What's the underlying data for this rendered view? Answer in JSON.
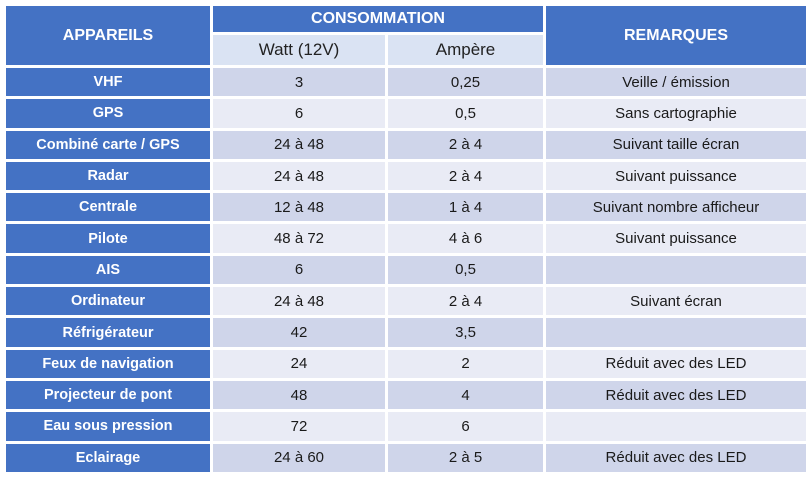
{
  "headers": {
    "appareils": "APPAREILS",
    "consommation": "CONSOMMATION",
    "watt": "Watt (12V)",
    "ampere": "Ampère",
    "remarques": "REMARQUES"
  },
  "rows": [
    {
      "appareil": "VHF",
      "watt": "3",
      "ampere": "0,25",
      "remarque": "Veille / émission"
    },
    {
      "appareil": "GPS",
      "watt": "6",
      "ampere": "0,5",
      "remarque": "Sans cartographie"
    },
    {
      "appareil": "Combiné carte / GPS",
      "watt": "24 à 48",
      "ampere": "2 à 4",
      "remarque": "Suivant taille écran"
    },
    {
      "appareil": "Radar",
      "watt": "24 à 48",
      "ampere": "2 à 4",
      "remarque": "Suivant puissance"
    },
    {
      "appareil": "Centrale",
      "watt": "12 à 48",
      "ampere": "1 à 4",
      "remarque": "Suivant nombre afficheur"
    },
    {
      "appareil": "Pilote",
      "watt": "48 à 72",
      "ampere": "4 à 6",
      "remarque": "Suivant puissance"
    },
    {
      "appareil": "AIS",
      "watt": "6",
      "ampere": "0,5",
      "remarque": ""
    },
    {
      "appareil": "Ordinateur",
      "watt": "24 à 48",
      "ampere": "2 à 4",
      "remarque": "Suivant écran"
    },
    {
      "appareil": "Réfrigérateur",
      "watt": "42",
      "ampere": "3,5",
      "remarque": ""
    },
    {
      "appareil": "Feux de navigation",
      "watt": "24",
      "ampere": "2",
      "remarque": "Réduit avec des LED"
    },
    {
      "appareil": "Projecteur de pont",
      "watt": "48",
      "ampere": "4",
      "remarque": "Réduit avec des LED"
    },
    {
      "appareil": "Eau sous pression",
      "watt": "72",
      "ampere": "6",
      "remarque": ""
    },
    {
      "appareil": "Eclairage",
      "watt": "24 à 60",
      "ampere": "2 à 5",
      "remarque": "Réduit avec des LED"
    }
  ],
  "colors": {
    "header_blue": "#4472c4",
    "row_dark": "#cfd5ea",
    "row_light": "#e9ebf5",
    "subheader": "#dae3f3"
  }
}
